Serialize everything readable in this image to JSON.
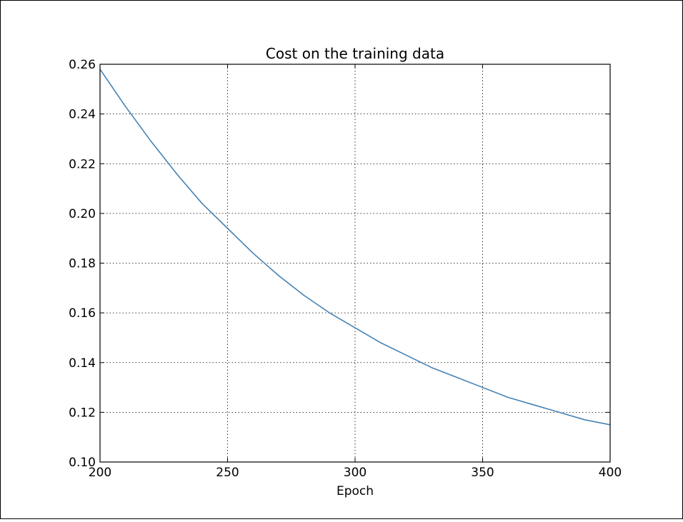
{
  "chart_data": {
    "type": "line",
    "title": "Cost on the training data",
    "xlabel": "Epoch",
    "ylabel": "",
    "xlim": [
      200,
      400
    ],
    "ylim": [
      0.1,
      0.26
    ],
    "grid": true,
    "legend": "none",
    "x_ticks": [
      200,
      250,
      300,
      350,
      400
    ],
    "y_ticks": [
      0.1,
      0.12,
      0.14,
      0.16,
      0.18,
      0.2,
      0.22,
      0.24,
      0.26
    ],
    "x_tick_labels": [
      "200",
      "250",
      "300",
      "350",
      "400"
    ],
    "y_tick_labels": [
      "0.10",
      "0.12",
      "0.14",
      "0.16",
      "0.18",
      "0.20",
      "0.22",
      "0.24",
      "0.26"
    ],
    "series": [
      {
        "color": "#4682b4",
        "x": [
          200,
          210,
          220,
          230,
          240,
          250,
          260,
          270,
          280,
          290,
          300,
          310,
          320,
          330,
          340,
          350,
          360,
          370,
          380,
          390,
          400
        ],
        "y": [
          0.258,
          0.243,
          0.229,
          0.216,
          0.204,
          0.194,
          0.184,
          0.175,
          0.167,
          0.16,
          0.154,
          0.148,
          0.143,
          0.138,
          0.134,
          0.13,
          0.126,
          0.123,
          0.12,
          0.117,
          0.115
        ]
      }
    ]
  }
}
